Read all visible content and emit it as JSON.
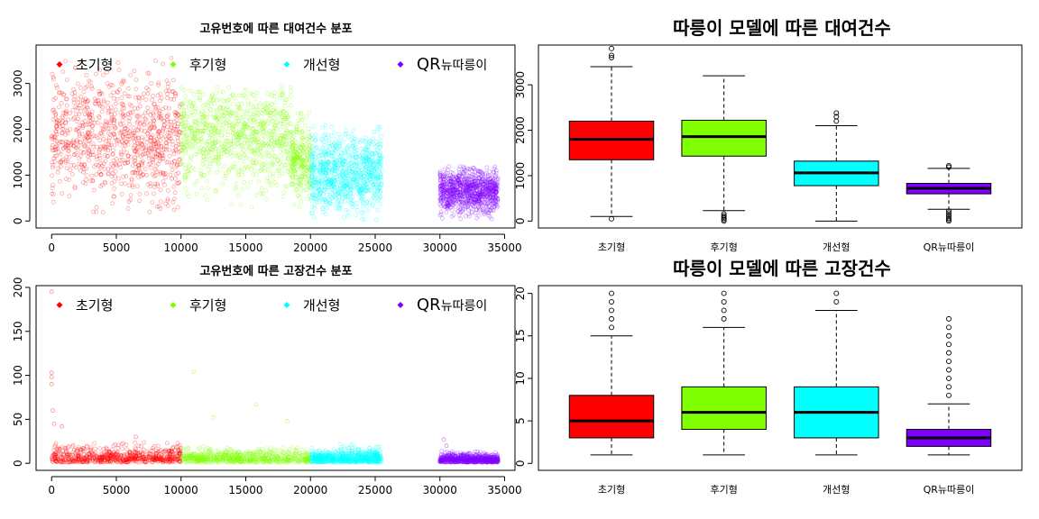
{
  "colors": {
    "초기형": "#ff0000",
    "후기형": "#80ff00",
    "개선형": "#00ffff",
    "QR뉴따릉이": "#8000ff",
    "axis": "#000000"
  },
  "chart_data": [
    {
      "type": "scatter",
      "title": "고유번호에 따른 대여건수 분포",
      "xlim": [
        0,
        35000
      ],
      "ylim": [
        0,
        3800
      ],
      "xticks": [
        "0",
        "5000",
        "10000",
        "15000",
        "20000",
        "25000",
        "30000",
        "35000"
      ],
      "yticks": [
        "0",
        "1000",
        "2000",
        "3000"
      ],
      "legend": [
        "초기형",
        "후기형",
        "개선형",
        "QR뉴따릉이"
      ],
      "legend_position": "top",
      "series": [
        {
          "name": "초기형",
          "x_range": [
            0,
            10000
          ],
          "y_center": 1800,
          "y_spread": [
            150,
            3600
          ],
          "density": "high"
        },
        {
          "name": "후기형",
          "x_range": [
            10000,
            18500
          ],
          "y_center": 1850,
          "y_spread": [
            200,
            2950
          ],
          "density": "high"
        },
        {
          "name": "후기형",
          "x_range": [
            18500,
            20000
          ],
          "y_center": 1300,
          "y_spread": [
            200,
            2400
          ],
          "density": "medium"
        },
        {
          "name": "개선형",
          "x_range": [
            20000,
            25500
          ],
          "y_center": 1050,
          "y_spread": [
            0,
            2100
          ],
          "density": "high"
        },
        {
          "name": "QR뉴따릉이",
          "x_range": [
            30000,
            34500
          ],
          "y_center": 650,
          "y_spread": [
            0,
            1200
          ],
          "density": "high"
        }
      ]
    },
    {
      "type": "box",
      "title": "따릉이 모델에 따른 대여건수",
      "categories": [
        "초기형",
        "후기형",
        "개선형",
        "QR뉴따릉이"
      ],
      "ylim": [
        0,
        3800
      ],
      "yticks": [
        "0",
        "1000",
        "2000",
        "3000"
      ],
      "boxes": [
        {
          "q1": 1350,
          "median": 1800,
          "q3": 2200,
          "whisker_low": 100,
          "whisker_high": 3400,
          "outliers": [
            50,
            3600,
            3650,
            3800
          ]
        },
        {
          "q1": 1430,
          "median": 1860,
          "q3": 2220,
          "whisker_low": 230,
          "whisker_high": 3200,
          "outliers": [
            0,
            30,
            60,
            90,
            120,
            160
          ]
        },
        {
          "q1": 780,
          "median": 1060,
          "q3": 1320,
          "whisker_low": 0,
          "whisker_high": 2100,
          "outliers": [
            2200,
            2300,
            2380
          ]
        },
        {
          "q1": 600,
          "median": 720,
          "q3": 830,
          "whisker_low": 260,
          "whisker_high": 1160,
          "outliers": [
            0,
            30,
            60,
            100,
            140,
            180,
            220,
            1190,
            1220
          ]
        }
      ]
    },
    {
      "type": "scatter",
      "title": "고유번호에 따른 고장건수 분포",
      "xlim": [
        0,
        35000
      ],
      "ylim": [
        0,
        200
      ],
      "xticks": [
        "0",
        "5000",
        "10000",
        "15000",
        "20000",
        "25000",
        "30000",
        "35000"
      ],
      "yticks": [
        "0",
        "50",
        "100",
        "150",
        "200"
      ],
      "legend": [
        "초기형",
        "후기형",
        "개선형",
        "QR뉴따릉이"
      ],
      "legend_position": "top",
      "series": [
        {
          "name": "초기형",
          "x_range": [
            0,
            10000
          ],
          "y_center": 7,
          "y_spread": [
            0,
            25
          ],
          "density": "high",
          "extra_points": [
            [
              0,
              195
            ],
            [
              0,
              103
            ],
            [
              0,
              98
            ],
            [
              0,
              90
            ],
            [
              100,
              60
            ],
            [
              200,
              45
            ],
            [
              800,
              42
            ],
            [
              6500,
              30
            ]
          ]
        },
        {
          "name": "후기형",
          "x_range": [
            10000,
            20000
          ],
          "y_center": 7,
          "y_spread": [
            0,
            22
          ],
          "density": "high",
          "extra_points": [
            [
              11000,
              104
            ],
            [
              12500,
              52
            ],
            [
              18200,
              48
            ],
            [
              15800,
              67
            ]
          ]
        },
        {
          "name": "개선형",
          "x_range": [
            20000,
            25500
          ],
          "y_center": 7,
          "y_spread": [
            0,
            22
          ],
          "density": "high",
          "extra_points": []
        },
        {
          "name": "QR뉴따릉이",
          "x_range": [
            30000,
            34500
          ],
          "y_center": 4,
          "y_spread": [
            0,
            14
          ],
          "density": "high",
          "extra_points": [
            [
              30300,
              27
            ],
            [
              30500,
              20
            ]
          ]
        }
      ]
    },
    {
      "type": "box",
      "title": "따릉이 모델에 따른 고장건수",
      "categories": [
        "초기형",
        "후기형",
        "개선형",
        "QR뉴따릉이"
      ],
      "ylim": [
        0,
        20.5
      ],
      "yticks": [
        "0",
        "5",
        "10",
        "15",
        "20"
      ],
      "boxes": [
        {
          "q1": 3,
          "median": 5,
          "q3": 8,
          "whisker_low": 1,
          "whisker_high": 15,
          "outliers": [
            16,
            17,
            18,
            19,
            20
          ]
        },
        {
          "q1": 4,
          "median": 6,
          "q3": 9,
          "whisker_low": 1,
          "whisker_high": 16,
          "outliers": [
            17,
            18,
            19,
            20
          ]
        },
        {
          "q1": 3,
          "median": 6,
          "q3": 9,
          "whisker_low": 1,
          "whisker_high": 18,
          "outliers": [
            19,
            20
          ]
        },
        {
          "q1": 2,
          "median": 3,
          "q3": 4,
          "whisker_low": 1,
          "whisker_high": 7,
          "outliers": [
            8,
            9,
            10,
            11,
            12,
            13,
            14,
            15,
            16,
            17
          ]
        }
      ]
    }
  ]
}
